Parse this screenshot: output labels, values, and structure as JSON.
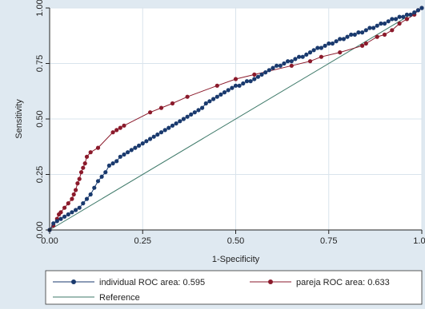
{
  "chart_data": {
    "type": "line",
    "title": "",
    "xlabel": "1-Specificity",
    "ylabel": "Sensitivity",
    "xlim": [
      0,
      1
    ],
    "ylim": [
      0,
      1
    ],
    "xticks": [
      "0.00",
      "0.25",
      "0.50",
      "0.75",
      "1.00"
    ],
    "yticks": [
      "0.00",
      "0.25",
      "0.50",
      "0.75",
      "1.00"
    ],
    "grid": true,
    "legend_position": "bottom",
    "series": [
      {
        "name": "individual ROC area: 0.595",
        "color": "#1a3a6e",
        "marker": "circle",
        "x": [
          0.0,
          0.01,
          0.02,
          0.03,
          0.04,
          0.05,
          0.06,
          0.07,
          0.08,
          0.09,
          0.1,
          0.11,
          0.12,
          0.13,
          0.14,
          0.15,
          0.16,
          0.17,
          0.18,
          0.19,
          0.2,
          0.21,
          0.22,
          0.23,
          0.24,
          0.25,
          0.26,
          0.27,
          0.28,
          0.29,
          0.3,
          0.31,
          0.32,
          0.33,
          0.34,
          0.35,
          0.36,
          0.37,
          0.38,
          0.39,
          0.4,
          0.41,
          0.42,
          0.43,
          0.44,
          0.45,
          0.46,
          0.47,
          0.48,
          0.49,
          0.5,
          0.51,
          0.52,
          0.53,
          0.54,
          0.55,
          0.56,
          0.57,
          0.58,
          0.59,
          0.6,
          0.61,
          0.62,
          0.63,
          0.64,
          0.65,
          0.66,
          0.67,
          0.68,
          0.69,
          0.7,
          0.71,
          0.72,
          0.73,
          0.74,
          0.75,
          0.76,
          0.77,
          0.78,
          0.79,
          0.8,
          0.81,
          0.82,
          0.83,
          0.84,
          0.85,
          0.86,
          0.87,
          0.88,
          0.89,
          0.9,
          0.91,
          0.92,
          0.93,
          0.94,
          0.95,
          0.96,
          0.97,
          0.98,
          0.99,
          1.0
        ],
        "y": [
          0.0,
          0.03,
          0.04,
          0.05,
          0.06,
          0.07,
          0.08,
          0.09,
          0.1,
          0.12,
          0.14,
          0.16,
          0.19,
          0.22,
          0.24,
          0.26,
          0.29,
          0.3,
          0.31,
          0.33,
          0.34,
          0.35,
          0.36,
          0.37,
          0.38,
          0.39,
          0.4,
          0.41,
          0.42,
          0.43,
          0.44,
          0.45,
          0.46,
          0.47,
          0.48,
          0.49,
          0.5,
          0.51,
          0.52,
          0.53,
          0.54,
          0.55,
          0.57,
          0.58,
          0.59,
          0.6,
          0.61,
          0.62,
          0.63,
          0.64,
          0.65,
          0.65,
          0.66,
          0.67,
          0.67,
          0.68,
          0.69,
          0.7,
          0.71,
          0.72,
          0.73,
          0.74,
          0.74,
          0.75,
          0.76,
          0.76,
          0.77,
          0.78,
          0.78,
          0.79,
          0.8,
          0.81,
          0.82,
          0.82,
          0.83,
          0.84,
          0.84,
          0.85,
          0.86,
          0.86,
          0.87,
          0.88,
          0.88,
          0.89,
          0.89,
          0.9,
          0.91,
          0.91,
          0.92,
          0.93,
          0.93,
          0.94,
          0.95,
          0.95,
          0.96,
          0.96,
          0.97,
          0.97,
          0.98,
          0.99,
          1.0
        ]
      },
      {
        "name": "pareja ROC area: 0.633",
        "color": "#8b1a2b",
        "marker": "circle",
        "x": [
          0.0,
          0.01,
          0.02,
          0.025,
          0.03,
          0.04,
          0.05,
          0.06,
          0.065,
          0.07,
          0.075,
          0.08,
          0.085,
          0.09,
          0.095,
          0.1,
          0.11,
          0.13,
          0.17,
          0.18,
          0.19,
          0.2,
          0.27,
          0.3,
          0.33,
          0.37,
          0.45,
          0.5,
          0.55,
          0.65,
          0.7,
          0.73,
          0.78,
          0.84,
          0.85,
          0.88,
          0.9,
          0.92,
          0.94,
          0.96,
          0.98,
          0.99,
          1.0
        ],
        "y": [
          0.0,
          0.02,
          0.05,
          0.07,
          0.08,
          0.1,
          0.12,
          0.14,
          0.16,
          0.18,
          0.21,
          0.23,
          0.26,
          0.28,
          0.3,
          0.33,
          0.35,
          0.37,
          0.44,
          0.45,
          0.46,
          0.47,
          0.53,
          0.55,
          0.57,
          0.6,
          0.65,
          0.68,
          0.7,
          0.74,
          0.76,
          0.78,
          0.8,
          0.83,
          0.84,
          0.87,
          0.88,
          0.9,
          0.93,
          0.95,
          0.97,
          0.99,
          1.0
        ]
      },
      {
        "name": "Reference",
        "color": "#3f7a6a",
        "marker": "none",
        "x": [
          0,
          1
        ],
        "y": [
          0,
          1
        ]
      }
    ]
  },
  "colors": {
    "frame_bg": "#dfe9f1",
    "plot_bg": "#ffffff",
    "grid": "#d9e4ec"
  }
}
